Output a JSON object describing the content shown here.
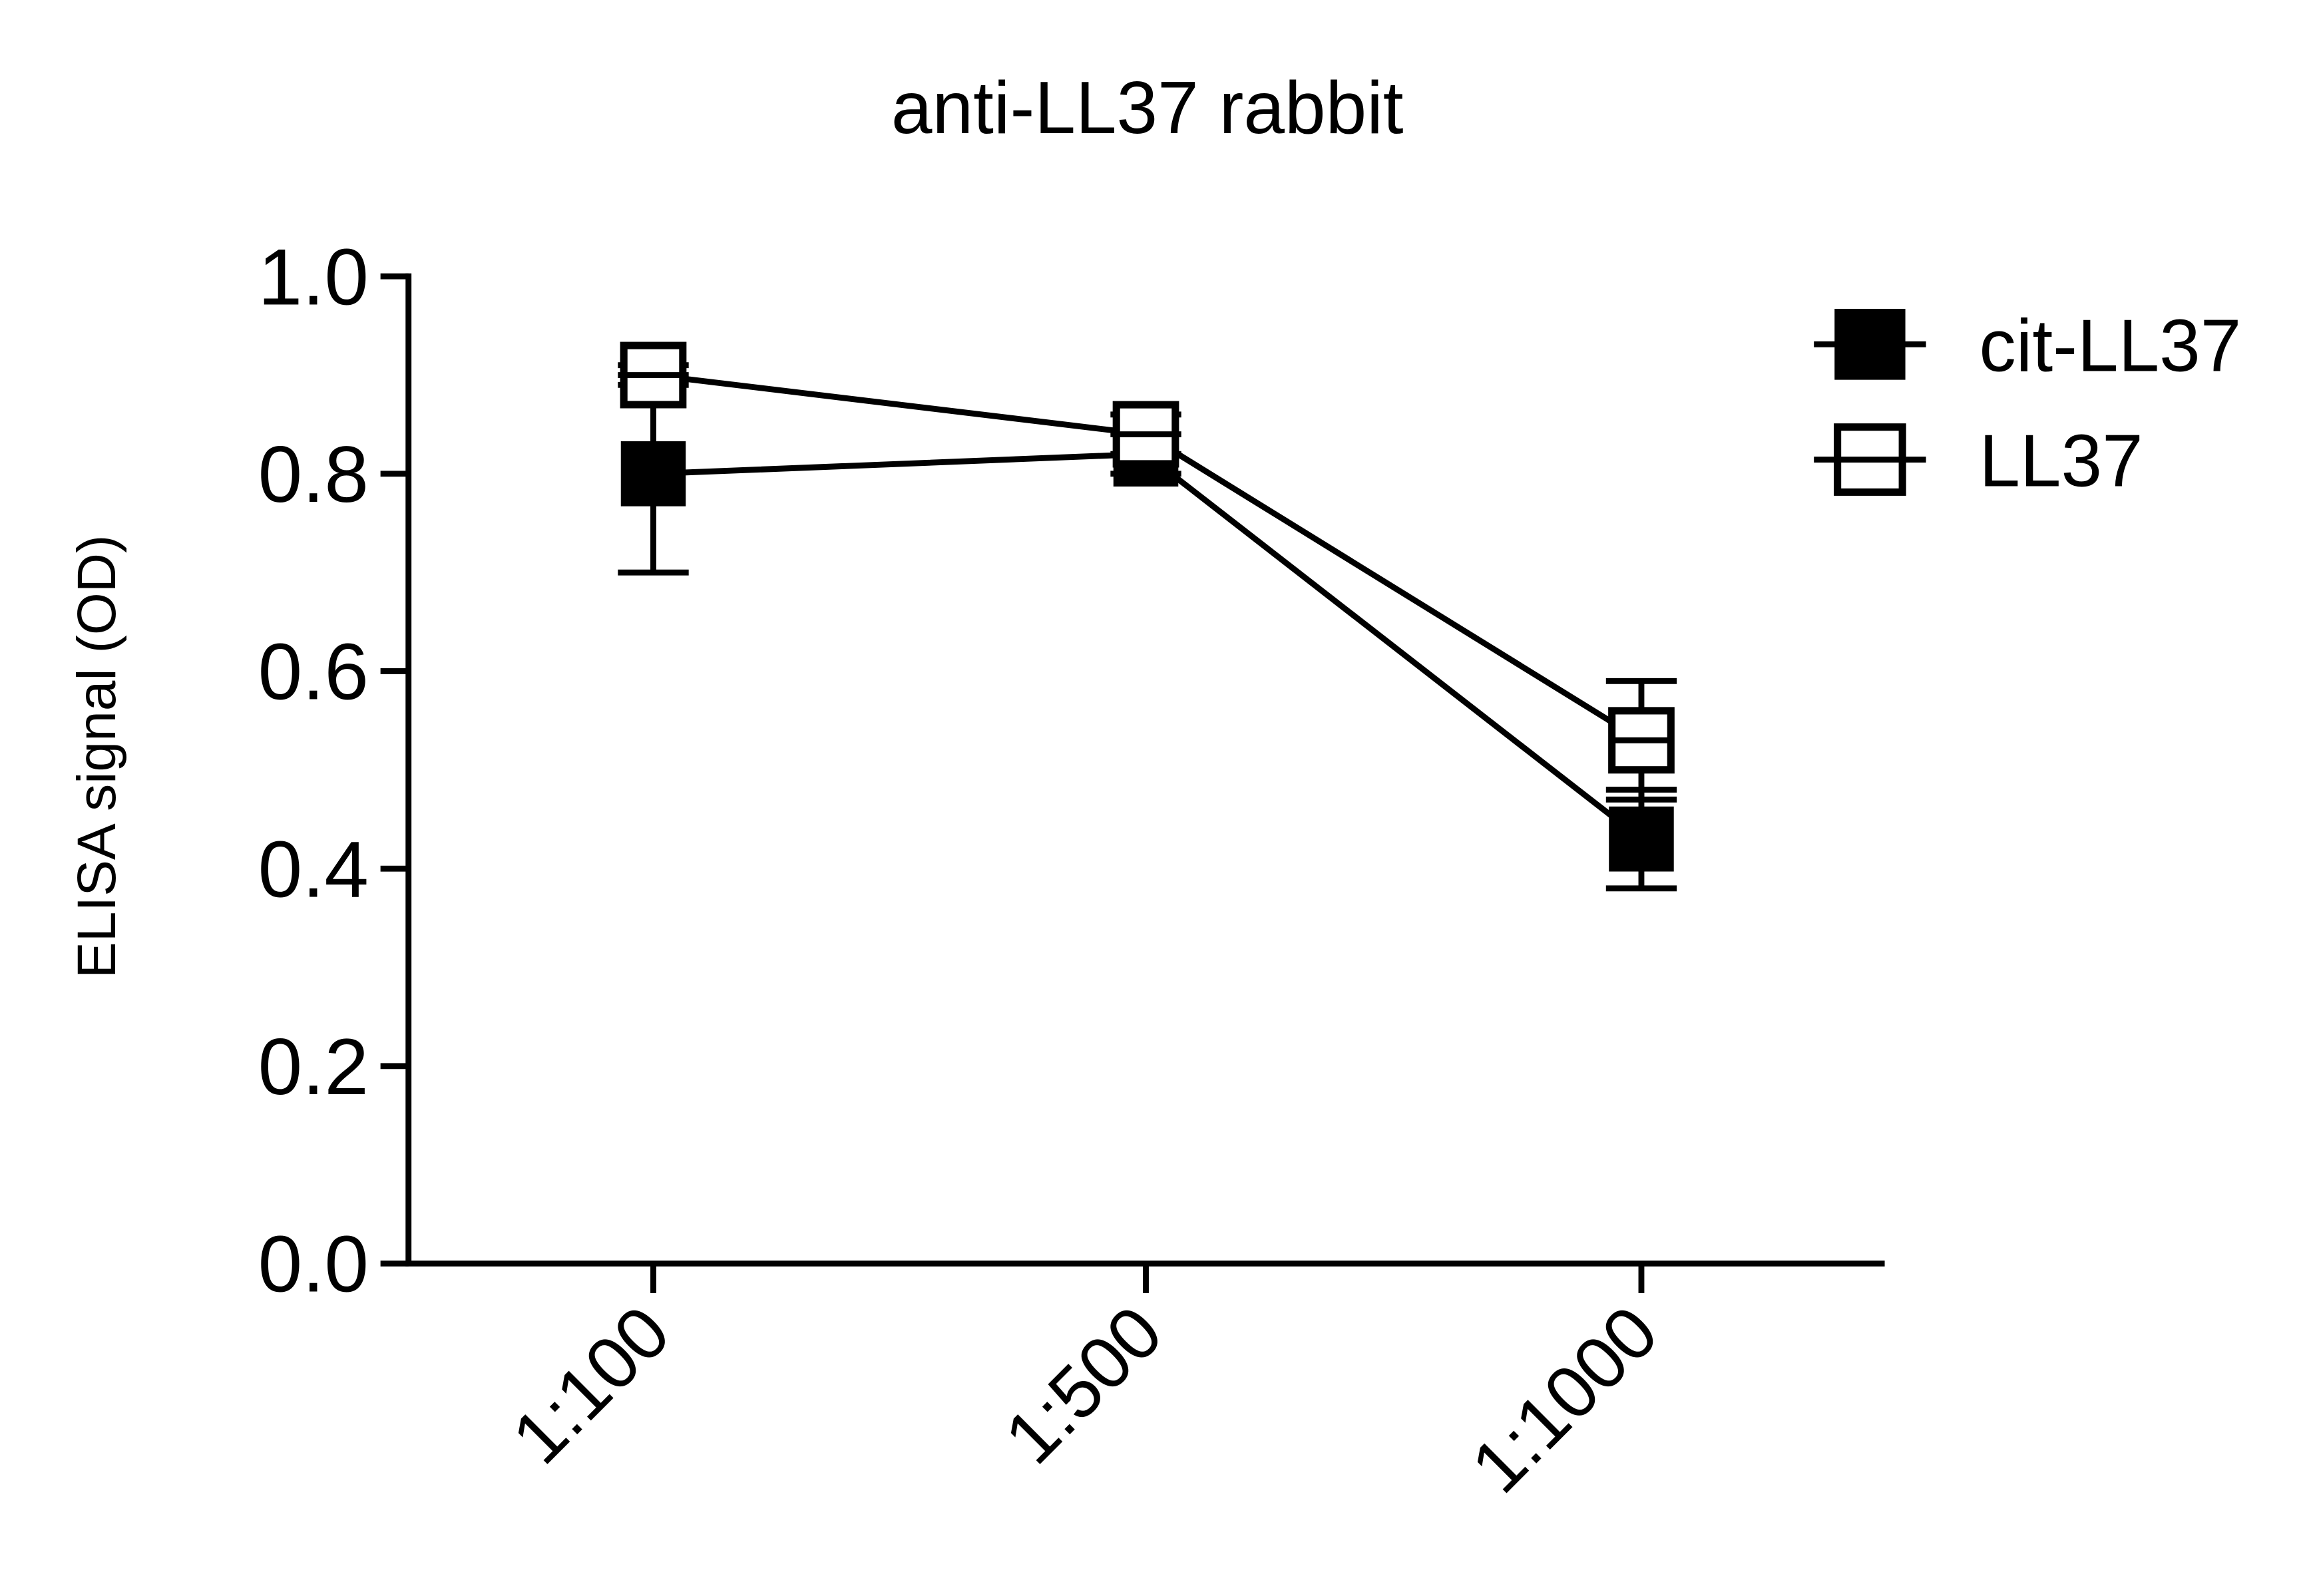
{
  "chart_data": {
    "type": "line",
    "title": "anti-LL37 rabbit",
    "y_label": "ELISA signal (OD)",
    "categories": [
      "1:100",
      "1:500",
      "1:1000"
    ],
    "series": [
      {
        "name": "cit-LL37",
        "color": "#000000",
        "marker": "filled-square",
        "values": [
          0.8,
          0.82,
          0.43
        ],
        "errors": [
          0.1,
          0.02,
          0.05
        ]
      },
      {
        "name": "LL37",
        "color": "#000000",
        "marker": "open-square",
        "values": [
          0.9,
          0.84,
          0.53
        ],
        "errors": [
          0.01,
          0.02,
          0.06
        ]
      }
    ],
    "ylim": [
      0,
      1
    ],
    "yticks": [
      {
        "value": 0,
        "label": "0.0"
      },
      0.2,
      0.4,
      0.6,
      0.8,
      {
        "value": 1,
        "label": "1.0"
      }
    ],
    "legend": "upper right"
  }
}
